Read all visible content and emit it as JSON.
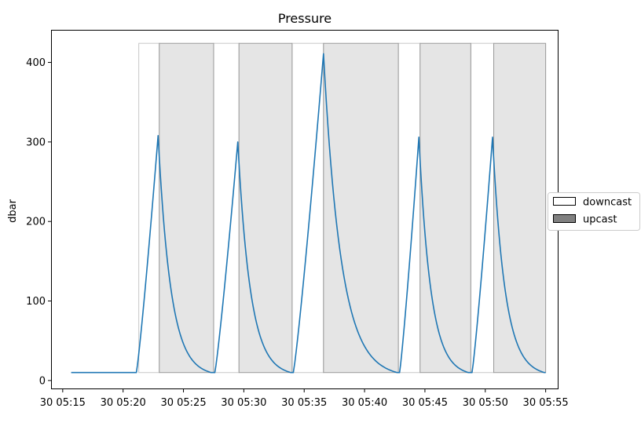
{
  "chart_data": {
    "type": "line",
    "title": "Pressure",
    "xlabel": "",
    "ylabel": "dbar",
    "x_unit": "minutes past 05:00 on day 30",
    "xlim": [
      14.1,
      56.0
    ],
    "ylim": [
      -10,
      440
    ],
    "x_ticks": [
      {
        "value": 15,
        "label": "30 05:15"
      },
      {
        "value": 20,
        "label": "30 05:20"
      },
      {
        "value": 25,
        "label": "30 05:25"
      },
      {
        "value": 30,
        "label": "30 05:30"
      },
      {
        "value": 35,
        "label": "30 05:35"
      },
      {
        "value": 40,
        "label": "30 05:40"
      },
      {
        "value": 45,
        "label": "30 05:45"
      },
      {
        "value": 50,
        "label": "30 05:50"
      },
      {
        "value": 55,
        "label": "30 05:55"
      }
    ],
    "y_ticks": [
      {
        "value": 0,
        "label": "0"
      },
      {
        "value": 100,
        "label": "100"
      },
      {
        "value": 200,
        "label": "200"
      },
      {
        "value": 300,
        "label": "300"
      },
      {
        "value": 400,
        "label": "400"
      }
    ],
    "grid": false,
    "line_color": "#1f77b4",
    "legend": {
      "placement": "center-right-outside",
      "entries": [
        {
          "label": "downcast",
          "color": "#ffffff"
        },
        {
          "label": "upcast",
          "color": "#808080"
        }
      ]
    },
    "regions": {
      "y_range": [
        10,
        424
      ],
      "downcast_color": "#ffffff",
      "upcast_color": "#e5e5e5",
      "edge_color": "#999999",
      "downcast": [
        [
          21.3,
          23.0
        ],
        [
          27.5,
          29.6
        ],
        [
          34.0,
          36.6
        ],
        [
          42.8,
          44.6
        ],
        [
          48.8,
          50.7
        ]
      ],
      "upcast": [
        [
          23.0,
          27.5
        ],
        [
          29.6,
          34.0
        ],
        [
          36.6,
          42.8
        ],
        [
          44.6,
          48.8
        ],
        [
          50.7,
          55.0
        ]
      ]
    },
    "casts": [
      {
        "start": 21.1,
        "peak_x": 22.9,
        "peak_y": 308,
        "end": 27.3
      },
      {
        "start": 27.6,
        "peak_x": 29.5,
        "peak_y": 300,
        "end": 33.9
      },
      {
        "start": 34.1,
        "peak_x": 36.6,
        "peak_y": 411,
        "end": 42.7
      },
      {
        "start": 42.9,
        "peak_x": 44.5,
        "peak_y": 306,
        "end": 48.6
      },
      {
        "start": 48.9,
        "peak_x": 50.6,
        "peak_y": 306,
        "end": 54.9
      }
    ],
    "baseline": {
      "y": 10,
      "x_start": 15.7,
      "x_end": 55.0
    }
  }
}
